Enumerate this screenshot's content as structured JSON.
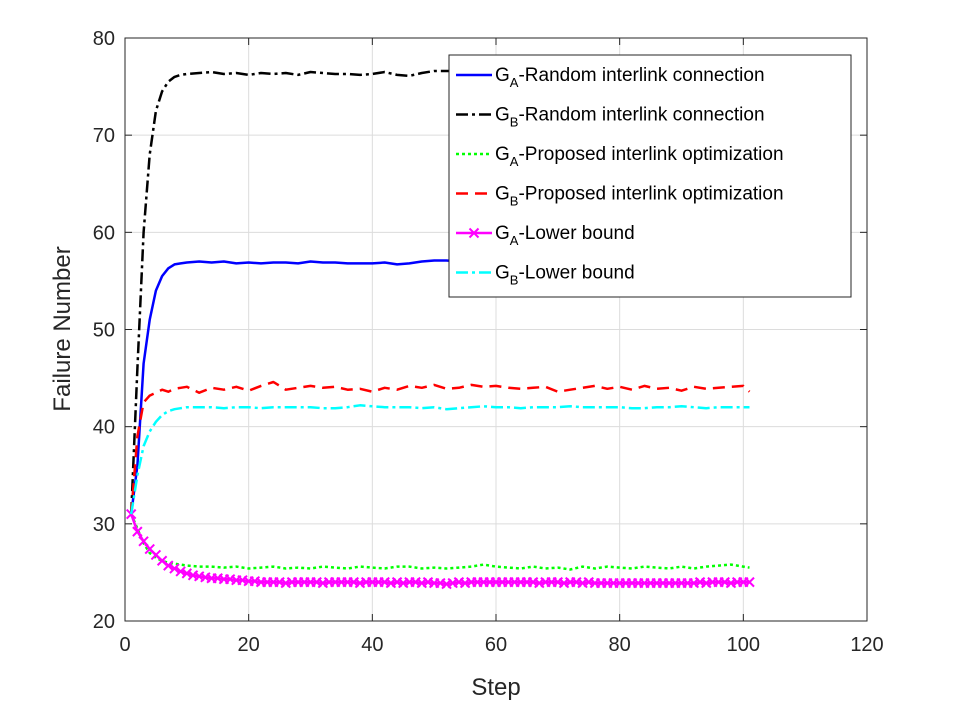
{
  "chart_data": {
    "type": "line",
    "xlabel": "Step",
    "ylabel": "Failure Number",
    "xlim": [
      0,
      120
    ],
    "ylim": [
      20,
      80
    ],
    "xticks": [
      0,
      20,
      40,
      60,
      80,
      100,
      120
    ],
    "yticks": [
      20,
      30,
      40,
      50,
      60,
      70,
      80
    ],
    "grid": true,
    "legend_position": "top-right",
    "series": [
      {
        "name": "GA-Random interlink connection",
        "legend": {
          "base": "G",
          "sub": "A",
          "text": "-Random interlink connection"
        },
        "color": "#0000ff",
        "dash": "solid",
        "marker": "none",
        "x": [
          1,
          2,
          3,
          4,
          5,
          6,
          7,
          8,
          9,
          10,
          12,
          14,
          16,
          18,
          20,
          22,
          24,
          26,
          28,
          30,
          32,
          34,
          36,
          38,
          40,
          42,
          44,
          46,
          48,
          50,
          52,
          54,
          56,
          58,
          60,
          62,
          64,
          66,
          68,
          70,
          72,
          74,
          76,
          78,
          80,
          82,
          84,
          86,
          88,
          90,
          92,
          94,
          96,
          98,
          100,
          101
        ],
        "y": [
          31,
          36,
          46.5,
          51,
          54,
          55.5,
          56.3,
          56.7,
          56.8,
          56.9,
          57.0,
          56.9,
          57.0,
          56.8,
          56.9,
          56.8,
          56.9,
          56.9,
          56.8,
          57.0,
          56.9,
          56.9,
          56.8,
          56.8,
          56.8,
          56.9,
          56.7,
          56.8,
          57.0,
          57.1,
          57.1,
          57.0,
          57.1,
          57.0,
          57.0,
          57.0,
          57.0,
          57.0,
          57.0,
          57.0,
          57.0,
          57.0,
          57.0,
          57.0,
          57.0,
          57.0,
          57.0,
          57.0,
          57.0,
          57.0,
          57.0,
          57.0,
          57.0,
          57.0,
          57.0,
          57.0
        ]
      },
      {
        "name": "GB-Random interlink connection",
        "legend": {
          "base": "G",
          "sub": "B",
          "text": "-Random interlink connection"
        },
        "color": "#000000",
        "dash": "dashdot",
        "marker": "none",
        "x": [
          1,
          2,
          3,
          4,
          5,
          6,
          7,
          8,
          9,
          10,
          12,
          14,
          16,
          18,
          20,
          22,
          24,
          26,
          28,
          30,
          32,
          34,
          36,
          38,
          40,
          42,
          44,
          46,
          48,
          50,
          52,
          54,
          56,
          58,
          60,
          62,
          64,
          66,
          68,
          70,
          72,
          74,
          76,
          78,
          80,
          82,
          84,
          86,
          88,
          90,
          92,
          94,
          96,
          98,
          100,
          101
        ],
        "y": [
          31,
          46,
          60,
          68,
          72.5,
          74.5,
          75.5,
          76,
          76.2,
          76.3,
          76.4,
          76.5,
          76.3,
          76.4,
          76.2,
          76.4,
          76.3,
          76.4,
          76.2,
          76.5,
          76.4,
          76.3,
          76.3,
          76.2,
          76.3,
          76.5,
          76.2,
          76.1,
          76.4,
          76.6,
          76.6,
          76.6,
          76.6,
          76.6,
          76.6,
          76.6,
          76.6,
          76.6,
          76.6,
          76.6,
          76.6,
          76.6,
          76.6,
          76.6,
          76.6,
          76.6,
          76.6,
          76.6,
          76.6,
          76.6,
          76.6,
          76.6,
          76.6,
          76.6,
          76.6,
          76.6
        ]
      },
      {
        "name": "GA-Proposed interlink optimization",
        "legend": {
          "base": "G",
          "sub": "A",
          "text": "-Proposed interlink optimization"
        },
        "color": "#00ff00",
        "dash": "dotted",
        "marker": "none",
        "x": [
          1,
          2,
          3,
          4,
          5,
          6,
          7,
          8,
          9,
          10,
          12,
          14,
          16,
          18,
          20,
          22,
          24,
          26,
          28,
          30,
          32,
          34,
          36,
          38,
          40,
          42,
          44,
          46,
          48,
          50,
          52,
          54,
          56,
          58,
          60,
          62,
          64,
          66,
          68,
          70,
          72,
          74,
          76,
          78,
          80,
          82,
          84,
          86,
          88,
          90,
          92,
          94,
          96,
          98,
          100,
          101
        ],
        "y": [
          31,
          29.5,
          28,
          27,
          26.5,
          26.2,
          26.0,
          25.9,
          25.8,
          25.7,
          25.6,
          25.6,
          25.5,
          25.6,
          25.4,
          25.5,
          25.6,
          25.4,
          25.5,
          25.4,
          25.6,
          25.5,
          25.4,
          25.6,
          25.5,
          25.4,
          25.6,
          25.6,
          25.4,
          25.5,
          25.4,
          25.5,
          25.6,
          25.8,
          25.6,
          25.5,
          25.4,
          25.6,
          25.4,
          25.5,
          25.3,
          25.6,
          25.4,
          25.6,
          25.5,
          25.4,
          25.6,
          25.5,
          25.4,
          25.6,
          25.4,
          25.6,
          25.7,
          25.8,
          25.6,
          25.5
        ]
      },
      {
        "name": "GB-Proposed interlink optimization",
        "legend": {
          "base": "G",
          "sub": "B",
          "text": "-Proposed interlink optimization"
        },
        "color": "#ff0000",
        "dash": "dashed",
        "marker": "none",
        "x": [
          1,
          2,
          3,
          4,
          5,
          6,
          7,
          8,
          9,
          10,
          12,
          14,
          16,
          18,
          20,
          22,
          24,
          26,
          28,
          30,
          32,
          34,
          36,
          38,
          40,
          42,
          44,
          46,
          48,
          50,
          52,
          54,
          56,
          58,
          60,
          62,
          64,
          66,
          68,
          70,
          72,
          74,
          76,
          78,
          80,
          82,
          84,
          86,
          88,
          90,
          92,
          94,
          96,
          98,
          100,
          101
        ],
        "y": [
          31,
          39,
          42.5,
          43.2,
          43.5,
          43.8,
          43.6,
          43.9,
          44.0,
          44.1,
          43.5,
          44.0,
          43.8,
          44.1,
          43.7,
          44.2,
          44.6,
          43.8,
          44.0,
          44.2,
          44.0,
          44.1,
          43.8,
          43.9,
          43.6,
          44.0,
          43.8,
          44.2,
          44.0,
          44.3,
          43.9,
          44.0,
          44.3,
          44.1,
          44.2,
          44.0,
          43.9,
          44.0,
          44.1,
          43.6,
          43.8,
          44.0,
          44.2,
          43.9,
          44.1,
          43.8,
          44.2,
          43.9,
          44.0,
          43.7,
          44.1,
          43.9,
          44.0,
          44.1,
          44.2,
          43.6
        ]
      },
      {
        "name": "GA-Lower bound",
        "legend": {
          "base": "G",
          "sub": "A",
          "text": "-Lower bound"
        },
        "color": "#ff00ff",
        "dash": "solid",
        "marker": "x",
        "x": [
          1,
          2,
          3,
          4,
          5,
          6,
          7,
          8,
          9,
          10,
          11,
          12,
          13,
          14,
          15,
          16,
          17,
          18,
          19,
          20,
          21,
          22,
          23,
          24,
          25,
          26,
          27,
          28,
          29,
          30,
          31,
          32,
          33,
          34,
          35,
          36,
          37,
          38,
          39,
          40,
          41,
          42,
          43,
          44,
          45,
          46,
          47,
          48,
          49,
          50,
          51,
          52,
          53,
          54,
          55,
          56,
          57,
          58,
          59,
          60,
          61,
          62,
          63,
          64,
          65,
          66,
          67,
          68,
          69,
          70,
          71,
          72,
          73,
          74,
          75,
          76,
          77,
          78,
          79,
          80,
          81,
          82,
          83,
          84,
          85,
          86,
          87,
          88,
          89,
          90,
          91,
          92,
          93,
          94,
          95,
          96,
          97,
          98,
          99,
          100,
          101
        ],
        "y": [
          31,
          29.2,
          28.2,
          27.4,
          26.8,
          26.2,
          25.7,
          25.4,
          25.1,
          24.9,
          24.7,
          24.6,
          24.5,
          24.4,
          24.4,
          24.3,
          24.3,
          24.2,
          24.2,
          24.1,
          24.1,
          24.0,
          24.0,
          24.0,
          24.0,
          23.9,
          24.0,
          24.0,
          24.0,
          24.0,
          24.0,
          23.9,
          24.0,
          24.0,
          24.0,
          24.0,
          24.0,
          23.9,
          24.0,
          24.0,
          24.0,
          24.0,
          23.9,
          24.0,
          23.9,
          24.0,
          24.0,
          23.9,
          24.0,
          23.9,
          23.9,
          23.8,
          23.9,
          24.0,
          23.9,
          24.0,
          24.0,
          24.0,
          24.0,
          24.0,
          24.0,
          24.0,
          24.0,
          24.0,
          24.0,
          24.0,
          23.9,
          24.0,
          24.0,
          24.0,
          23.9,
          24.0,
          24.0,
          23.9,
          24.0,
          23.9,
          23.9,
          23.9,
          23.9,
          23.9,
          23.9,
          23.9,
          23.9,
          23.9,
          23.9,
          23.9,
          23.9,
          23.9,
          23.9,
          23.9,
          23.9,
          23.9,
          24.0,
          23.9,
          24.0,
          24.0,
          24.0,
          23.9,
          24.0,
          24.0,
          24.0
        ]
      },
      {
        "name": "GB-Lower bound",
        "legend": {
          "base": "G",
          "sub": "B",
          "text": "-Lower bound"
        },
        "color": "#00ffff",
        "dash": "dashdot",
        "marker": "none",
        "x": [
          1,
          2,
          3,
          4,
          5,
          6,
          7,
          8,
          9,
          10,
          12,
          14,
          16,
          18,
          20,
          22,
          24,
          26,
          28,
          30,
          32,
          34,
          36,
          38,
          40,
          42,
          44,
          46,
          48,
          50,
          52,
          54,
          56,
          58,
          60,
          62,
          64,
          66,
          68,
          70,
          72,
          74,
          76,
          78,
          80,
          82,
          84,
          86,
          88,
          90,
          92,
          94,
          96,
          98,
          100,
          101
        ],
        "y": [
          31,
          35,
          38,
          39.5,
          40.5,
          41.2,
          41.6,
          41.8,
          41.9,
          42.0,
          42.0,
          42.0,
          41.9,
          42.0,
          42.0,
          41.9,
          42.0,
          42.0,
          42.0,
          42.0,
          41.9,
          41.9,
          42.0,
          42.2,
          42.1,
          42.0,
          42.0,
          42.0,
          41.9,
          42.0,
          41.8,
          41.9,
          42.0,
          42.1,
          42.0,
          42.0,
          41.9,
          42.0,
          42.0,
          42.0,
          42.1,
          42.0,
          42.0,
          42.0,
          42.0,
          41.9,
          41.9,
          42.0,
          42.0,
          42.1,
          42.0,
          41.9,
          42.0,
          42.0,
          42.0,
          42.0
        ]
      }
    ]
  }
}
